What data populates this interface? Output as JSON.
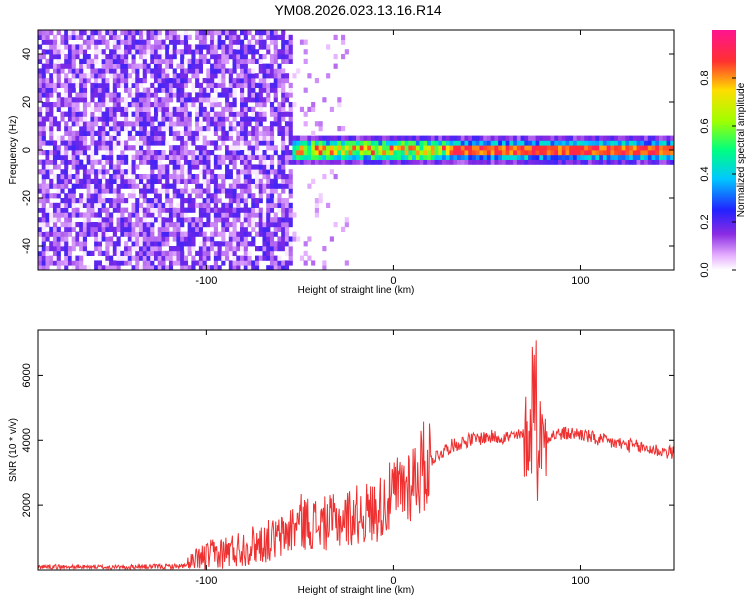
{
  "title": "YM08.2026.023.13.16.R14",
  "chart_data": [
    {
      "type": "heatmap",
      "xlabel": "Height of straight line (km)",
      "ylabel": "Frequency (Hz)",
      "xlim": [
        -190,
        150
      ],
      "ylim": [
        -50,
        50
      ],
      "x_ticks": [
        -100,
        0,
        100
      ],
      "y_ticks": [
        40,
        20,
        0,
        -20,
        -40
      ],
      "colorbar": {
        "label": "Normalized spectral amplitude",
        "range": [
          0,
          1
        ],
        "ticks": [
          "0.0",
          "0.2",
          "0.4",
          "0.6",
          "0.8"
        ]
      },
      "regions": [
        {
          "x_range": [
            -190,
            -55
          ],
          "y_range": [
            -50,
            50
          ],
          "description": "broadband noise, amplitude ~0.1-0.2"
        },
        {
          "x_range": [
            -55,
            150
          ],
          "y_range": [
            -3,
            3
          ],
          "description": "narrow band near 0 Hz, amplitude up to ~0.9"
        }
      ]
    },
    {
      "type": "line",
      "xlabel": "Height of straight line (km)",
      "ylabel": "SNR (10 * v/v)",
      "xlim": [
        -190,
        150
      ],
      "ylim": [
        0,
        7400
      ],
      "x_ticks": [
        -100,
        0,
        100
      ],
      "y_ticks": [
        2000,
        4000,
        6000
      ],
      "series": [
        {
          "color": "#ee3030",
          "x": [
            -190,
            -150,
            -110,
            -100,
            -80,
            -60,
            -50,
            -40,
            -30,
            -20,
            -10,
            0,
            10,
            20,
            30,
            40,
            50,
            60,
            70,
            75,
            80,
            90,
            100,
            110,
            120,
            130,
            140,
            150
          ],
          "y": [
            100,
            80,
            120,
            400,
            700,
            1000,
            1500,
            1400,
            1500,
            1700,
            1800,
            2300,
            2800,
            3400,
            3800,
            4000,
            4100,
            4100,
            4150,
            4200,
            4100,
            4200,
            4200,
            4000,
            3900,
            3800,
            3700,
            3600
          ]
        }
      ]
    }
  ]
}
